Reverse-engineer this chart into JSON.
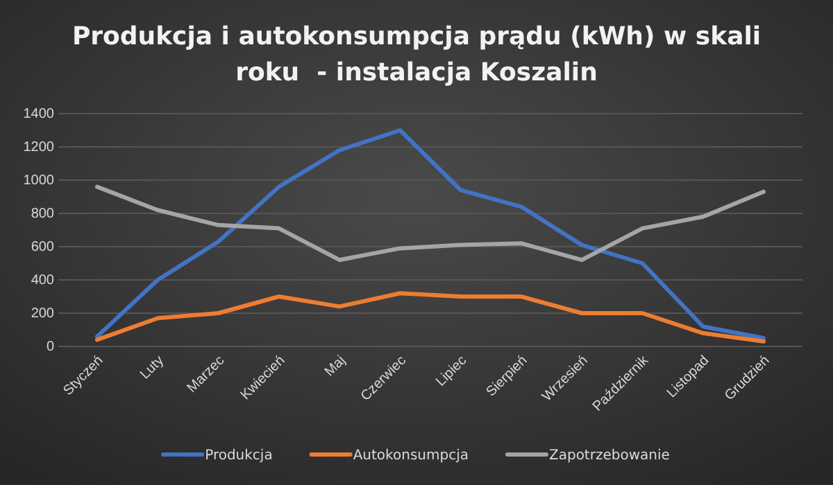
{
  "chart_data": {
    "type": "line",
    "title": "Produkcja i autokonsumpcja prądu (kWh) w skali roku  - instalacja Koszalin",
    "categories": [
      "Styczeń",
      "Luty",
      "Marzec",
      "Kwiecień",
      "Maj",
      "Czerwiec",
      "Lipiec",
      "Sierpień",
      "Wrzesień",
      "Październik",
      "Listopad",
      "Grudzień"
    ],
    "series": [
      {
        "name": "Produkcja",
        "color": "#4472c4",
        "values": [
          60,
          400,
          630,
          960,
          1180,
          1300,
          940,
          840,
          610,
          500,
          120,
          50
        ]
      },
      {
        "name": "Autokonsumpcja",
        "color": "#ed7d31",
        "values": [
          40,
          170,
          200,
          300,
          240,
          320,
          300,
          300,
          200,
          200,
          80,
          30
        ]
      },
      {
        "name": "Zapotrzebowanie",
        "color": "#a5a5a5",
        "values": [
          960,
          820,
          730,
          710,
          520,
          590,
          610,
          620,
          520,
          710,
          780,
          930
        ]
      }
    ],
    "ylim": [
      0,
      1400
    ],
    "yticks": [
      0,
      200,
      400,
      600,
      800,
      1000,
      1200,
      1400
    ],
    "grid": "y",
    "legend": "bottom",
    "marker": "none",
    "line_style": "solid"
  }
}
